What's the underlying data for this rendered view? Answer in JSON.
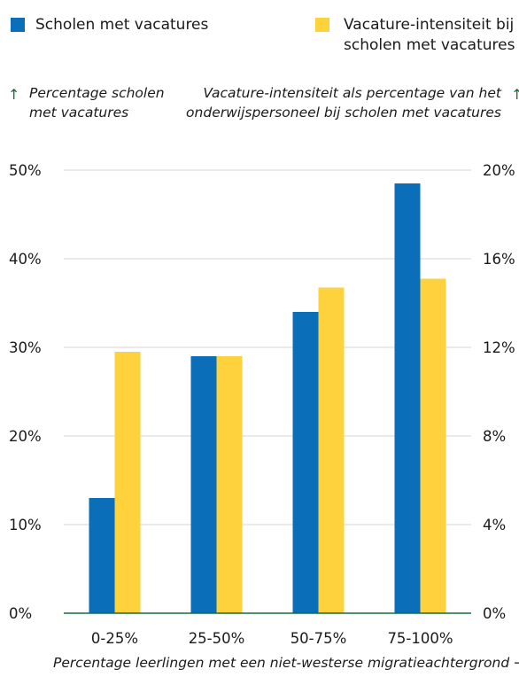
{
  "legend": [
    {
      "label_lines": [
        "Scholen met vacatures"
      ],
      "color": "#0a6eb8"
    },
    {
      "label_lines": [
        "Vacature-intensiteit bij",
        "scholen met vacatures"
      ],
      "color": "#fdd23c"
    }
  ],
  "axis_titles": {
    "left": [
      "Percentage scholen",
      "met vacatures"
    ],
    "right": [
      "Vacature-intensiteit als percentage van het",
      "onderwijspersoneel bij scholen met vacatures"
    ],
    "bottom": "Percentage leerlingen met een niet-westerse migratieachtergrond"
  },
  "colors": {
    "series1": "#0a6eb8",
    "series2": "#fdd23c",
    "grid": "#d4d4d4",
    "axis": "#1a6b3c",
    "arrow": "#1a6b3c"
  },
  "chart_data": {
    "type": "bar",
    "categories": [
      "0-25%",
      "25-50%",
      "50-75%",
      "75-100%"
    ],
    "series": [
      {
        "name": "Scholen met vacatures",
        "axis": "left",
        "values": [
          13,
          29,
          34,
          48.5
        ]
      },
      {
        "name": "Vacature-intensiteit bij scholen met vacatures",
        "axis": "right",
        "values": [
          11.8,
          11.6,
          14.7,
          15.1
        ]
      }
    ],
    "xlabel": "Percentage leerlingen met een niet-westerse migratieachtergrond",
    "ylabel_left": "Percentage scholen met vacatures",
    "ylabel_right": "Vacature-intensiteit als percentage van het onderwijspersoneel bij scholen met vacatures",
    "ylim_left": [
      0,
      50
    ],
    "ylim_right": [
      0,
      20
    ],
    "left_ticks": [
      "0%",
      "10%",
      "20%",
      "30%",
      "40%",
      "50%"
    ],
    "right_ticks": [
      "0%",
      "4%",
      "8%",
      "12%",
      "16%",
      "20%"
    ],
    "grid": true,
    "legend_position": "top"
  }
}
